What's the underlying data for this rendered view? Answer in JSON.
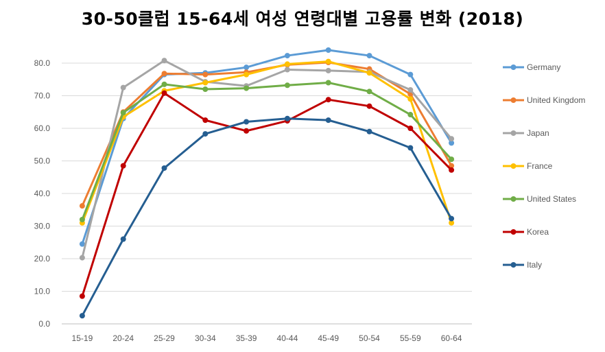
{
  "chart_data": {
    "type": "line",
    "title": "30-50클럽 15-64세 여성 연령대별 고용률 변화 (2018)",
    "xlabel": "",
    "ylabel": "",
    "ylim": [
      0,
      85
    ],
    "y_ticks": [
      "0.0",
      "10.0",
      "20.0",
      "30.0",
      "40.0",
      "50.0",
      "60.0",
      "70.0",
      "80.0"
    ],
    "grid": true,
    "legend_position": "right",
    "categories": [
      "15-19",
      "20-24",
      "25-29",
      "30-34",
      "35-39",
      "40-44",
      "45-49",
      "50-54",
      "55-59",
      "60-64"
    ],
    "series": [
      {
        "name": "Germany",
        "color": "#5B9BD5",
        "values": [
          24.5,
          63.0,
          76.5,
          77.0,
          78.7,
          82.3,
          84.0,
          82.3,
          76.5,
          55.5
        ]
      },
      {
        "name": "United Kingdom",
        "color": "#ED7D31",
        "values": [
          36.2,
          65.0,
          76.8,
          76.5,
          77.2,
          79.5,
          80.2,
          78.2,
          70.5,
          48.5
        ]
      },
      {
        "name": "Japan",
        "color": "#A5A5A5",
        "values": [
          20.3,
          72.5,
          80.8,
          74.3,
          73.0,
          78.0,
          77.7,
          77.3,
          71.8,
          56.8
        ]
      },
      {
        "name": "France",
        "color": "#FFC000",
        "values": [
          31.0,
          63.5,
          71.5,
          74.0,
          76.5,
          79.7,
          80.5,
          77.0,
          69.0,
          31.0
        ]
      },
      {
        "name": "United States",
        "color": "#70AD47",
        "values": [
          32.0,
          64.8,
          73.5,
          72.0,
          72.3,
          73.2,
          74.0,
          71.3,
          64.2,
          50.5
        ]
      },
      {
        "name": "Korea",
        "color": "#C00000",
        "values": [
          8.5,
          48.5,
          70.8,
          62.5,
          59.2,
          62.3,
          68.8,
          66.8,
          60.0,
          47.2
        ]
      },
      {
        "name": "Italy",
        "color": "#255E91",
        "values": [
          2.5,
          26.0,
          47.8,
          58.3,
          62.0,
          63.0,
          62.5,
          59.0,
          54.0,
          32.3
        ]
      }
    ]
  }
}
